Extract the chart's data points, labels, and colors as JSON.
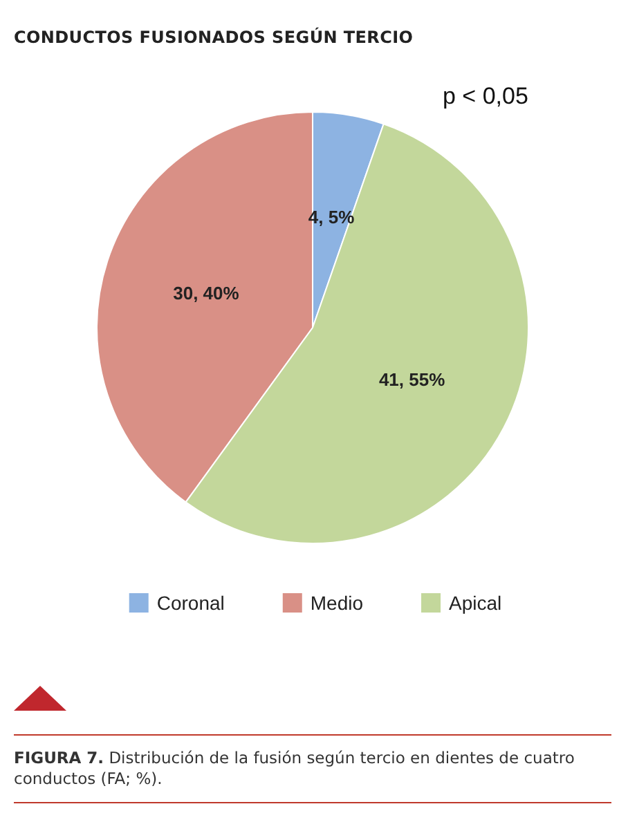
{
  "chart_data": {
    "type": "pie",
    "title": "CONDUCTOS FUSIONADOS SEGÚN TERCIO",
    "categories": [
      "Coronal",
      "Medio",
      "Apical"
    ],
    "values": [
      4,
      30,
      41
    ],
    "value_labels": [
      "4, 5%",
      "30, 40%",
      "41, 55%"
    ],
    "colors": [
      "#8db3e2",
      "#d99086",
      "#c3d79b"
    ],
    "legend": "bottom",
    "annotations": [
      "p < 0,05",
      "FIGURA 7. Distribución de la fusión según tercio en dientes de cuatro conductos (FA; %)."
    ]
  }
}
